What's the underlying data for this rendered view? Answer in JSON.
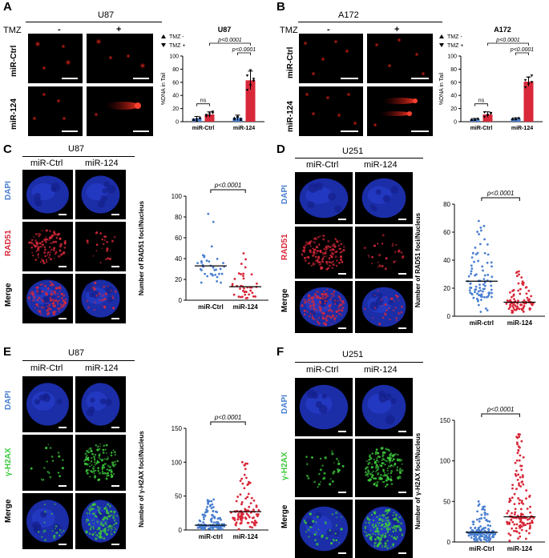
{
  "panels": {
    "A": {
      "label": "A",
      "cell_line": "U87",
      "treatment_label": "TMZ",
      "cols": [
        "-",
        "+"
      ],
      "rows": [
        "miR-Ctrl",
        "miR-124"
      ],
      "chart_title": "U87",
      "legend": [
        "TMZ -",
        "TMZ +"
      ]
    },
    "B": {
      "label": "B",
      "cell_line": "A172",
      "treatment_label": "TMZ",
      "cols": [
        "-",
        "+"
      ],
      "rows": [
        "miR-Ctrl",
        "miR-124"
      ],
      "chart_title": "A172",
      "legend": [
        "TMZ -",
        "TMZ +"
      ]
    },
    "C": {
      "label": "C",
      "cell_line": "U87",
      "cols": [
        "miR-Ctrl",
        "miR-124"
      ],
      "rows": [
        "DAPI",
        "RAD51",
        "Merge"
      ]
    },
    "D": {
      "label": "D",
      "cell_line": "U251",
      "cols": [
        "miR-Ctrl",
        "miR-124"
      ],
      "rows": [
        "DAPI",
        "RAD51",
        "Merge"
      ]
    },
    "E": {
      "label": "E",
      "cell_line": "U87",
      "cols": [
        "miR-Ctrl",
        "miR-124"
      ],
      "rows": [
        "DAPI",
        "γ-H2AX",
        "Merge"
      ]
    },
    "F": {
      "label": "F",
      "cell_line": "U251",
      "cols": [
        "miR-Ctrl",
        "miR-124"
      ],
      "rows": [
        "DAPI",
        "γ-H2AX",
        "Merge"
      ]
    }
  },
  "colors": {
    "blue": "#4a7fd0",
    "red": "#d8283a",
    "dapi": "#3a6fd8",
    "rad51": "#d8283a",
    "h2ax": "#3cc83c"
  },
  "chart_data": [
    {
      "id": "A",
      "type": "bar",
      "title": "U87",
      "ylabel": "%DNA in Tail",
      "ylim": [
        0,
        100
      ],
      "yticks": [
        0,
        20,
        40,
        60,
        80,
        100
      ],
      "categories": [
        "miR-Ctrl",
        "miR-124"
      ],
      "series": [
        {
          "name": "TMZ -",
          "values": [
            5,
            6
          ],
          "errors": [
            3,
            4
          ],
          "points": [
            [
              3,
              5,
              7,
              4,
              2,
              6
            ],
            [
              4,
              8,
              3,
              6,
              9,
              5
            ]
          ]
        },
        {
          "name": "TMZ +",
          "values": [
            11,
            63
          ],
          "errors": [
            4,
            14
          ],
          "points": [
            [
              8,
              12,
              15,
              10,
              9,
              13
            ],
            [
              48,
              55,
              62,
              70,
              78,
              65
            ]
          ]
        }
      ],
      "annotations": [
        {
          "text": "ns",
          "between": [
            [
              0,
              0
            ],
            [
              0,
              1
            ]
          ]
        },
        {
          "text": "p<0.0001",
          "between": [
            [
              1,
              0
            ],
            [
              1,
              1
            ]
          ]
        },
        {
          "text": "p<0.0001",
          "between": [
            [
              0,
              1
            ],
            [
              1,
              1
            ]
          ]
        }
      ]
    },
    {
      "id": "B",
      "type": "bar",
      "title": "A172",
      "ylabel": "%DNA in Tail",
      "ylim": [
        0,
        100
      ],
      "yticks": [
        0,
        20,
        40,
        60,
        80,
        100
      ],
      "categories": [
        "miR-Ctrl",
        "miR-124"
      ],
      "series": [
        {
          "name": "TMZ -",
          "values": [
            4,
            5
          ],
          "errors": [
            1,
            1
          ],
          "points": [
            [
              3,
              4,
              5,
              4,
              3,
              5
            ],
            [
              4,
              5,
              6,
              5,
              4,
              6
            ]
          ]
        },
        {
          "name": "TMZ +",
          "values": [
            11,
            61
          ],
          "errors": [
            4,
            7
          ],
          "points": [
            [
              7,
              9,
              12,
              14,
              10,
              13
            ],
            [
              52,
              57,
              60,
              63,
              67,
              70
            ]
          ]
        }
      ],
      "annotations": [
        {
          "text": "ns",
          "between": [
            [
              0,
              0
            ],
            [
              0,
              1
            ]
          ]
        },
        {
          "text": "p<0.0001",
          "between": [
            [
              1,
              0
            ],
            [
              1,
              1
            ]
          ]
        },
        {
          "text": "p<0.0001",
          "between": [
            [
              0,
              1
            ],
            [
              1,
              1
            ]
          ]
        }
      ]
    },
    {
      "id": "C",
      "type": "scatter",
      "ylabel": "Number of RAD51 foci/Nucleus",
      "ylim": [
        0,
        100
      ],
      "yticks": [
        0,
        20,
        40,
        60,
        80,
        100
      ],
      "categories": [
        "miR-Ctrl",
        "miR-124"
      ],
      "series": [
        {
          "name": "miR-Ctrl",
          "mean": 33,
          "n": 36,
          "min": 10,
          "max": 83
        },
        {
          "name": "miR-124",
          "mean": 13,
          "n": 40,
          "min": 0,
          "max": 45
        }
      ],
      "annotation": "p<0.0001"
    },
    {
      "id": "D",
      "type": "scatter",
      "ylabel": "Number of RAD51 foci/Nucleus",
      "ylim": [
        0,
        80
      ],
      "yticks": [
        0,
        20,
        40,
        60,
        80
      ],
      "categories": [
        "miR-ctrl",
        "miR-124"
      ],
      "series": [
        {
          "name": "miR-ctrl",
          "mean": 25,
          "n": 90,
          "min": 3,
          "max": 68
        },
        {
          "name": "miR-124",
          "mean": 10,
          "n": 90,
          "min": 0,
          "max": 32
        }
      ],
      "annotation": "p<0.0001"
    },
    {
      "id": "E",
      "type": "scatter",
      "ylabel": "Number of γ-H2AX foci/Nucleus",
      "ylim": [
        0,
        150
      ],
      "yticks": [
        0,
        50,
        100,
        150
      ],
      "categories": [
        "miR-ctrl",
        "miR-124"
      ],
      "series": [
        {
          "name": "miR-ctrl",
          "mean": 7,
          "n": 130,
          "min": 0,
          "max": 45
        },
        {
          "name": "miR-124",
          "mean": 27,
          "n": 100,
          "min": 0,
          "max": 100
        }
      ],
      "annotation": "p<0.0001"
    },
    {
      "id": "F",
      "type": "scatter",
      "ylabel": "Number of γ-H2AX foci/Nucleus",
      "ylim": [
        0,
        150
      ],
      "yticks": [
        0,
        50,
        100,
        150
      ],
      "categories": [
        "miR-Ctrl",
        "miR-124"
      ],
      "series": [
        {
          "name": "miR-Ctrl",
          "mean": 12,
          "n": 140,
          "min": 0,
          "max": 50
        },
        {
          "name": "miR-124",
          "mean": 31,
          "n": 140,
          "min": 0,
          "max": 133
        }
      ],
      "annotation": "p<0.0001"
    }
  ]
}
